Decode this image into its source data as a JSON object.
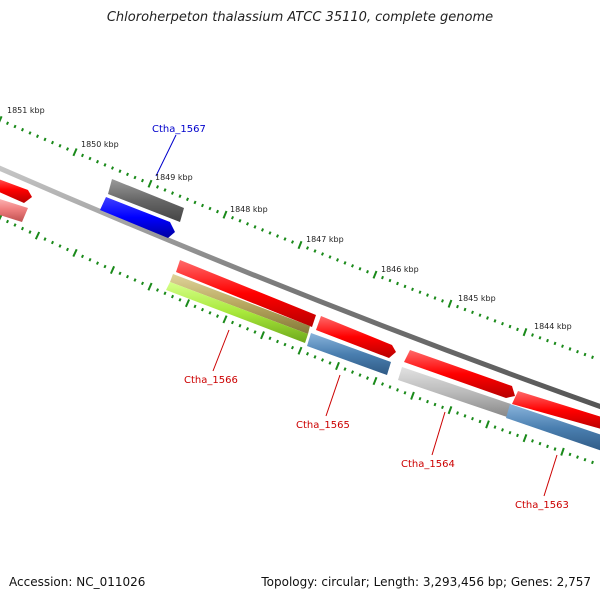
{
  "title": "Chloroherpeton thalassium ATCC 35110, complete genome",
  "footer": {
    "accession": "Accession: NC_011026",
    "stats": "Topology: circular; Length: 3,293,456 bp; Genes: 2,757"
  },
  "ticks": [
    {
      "label": "1851 kbp",
      "kbp": 1851
    },
    {
      "label": "1850 kbp",
      "kbp": 1850
    },
    {
      "label": "1849 kbp",
      "kbp": 1849
    },
    {
      "label": "1848 kbp",
      "kbp": 1848
    },
    {
      "label": "1847 kbp",
      "kbp": 1847
    },
    {
      "label": "1846 kbp",
      "kbp": 1846
    },
    {
      "label": "1845 kbp",
      "kbp": 1845
    },
    {
      "label": "1844 kbp",
      "kbp": 1844
    }
  ],
  "gene_labels": [
    {
      "name": "Ctha_1567",
      "color": "#0000cc"
    },
    {
      "name": "Ctha_1566",
      "color": "#cc0000"
    },
    {
      "name": "Ctha_1565",
      "color": "#cc0000"
    },
    {
      "name": "Ctha_1564",
      "color": "#cc0000"
    },
    {
      "name": "Ctha_1563",
      "color": "#cc0000"
    }
  ],
  "colors": {
    "cds_forward": "#ff0000",
    "cds_reverse_blue": "#0000ff",
    "gene_grey": "#777777",
    "light_grey": "#bbbbbb",
    "steel_blue": "#4a7fb0",
    "lime": "#a8e83a",
    "olive": "#b8a860",
    "pink": "#f08080",
    "backbone": "#888888",
    "tick_green": "#1a8a1a"
  }
}
